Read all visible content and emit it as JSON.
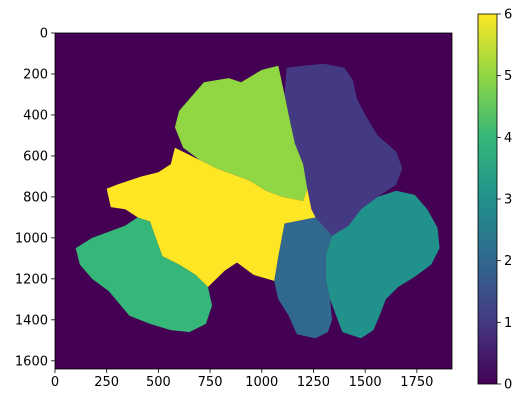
{
  "chart_data": {
    "type": "heatmap",
    "title": "",
    "xlabel": "",
    "ylabel": "",
    "image_extent": {
      "width": 1920,
      "height": 1640
    },
    "x_ticks": [
      0,
      250,
      500,
      750,
      1000,
      1250,
      1500,
      1750
    ],
    "y_ticks": [
      0,
      200,
      400,
      600,
      800,
      1000,
      1200,
      1400,
      1600
    ],
    "y_axis_inverted": true,
    "colormap": "viridis",
    "colorbar": {
      "range": [
        0,
        6
      ],
      "ticks": [
        0,
        1,
        2,
        3,
        4,
        5,
        6
      ],
      "stops": [
        "#440154",
        "#443983",
        "#31688e",
        "#21918c",
        "#35b779",
        "#90d743",
        "#fde725"
      ]
    },
    "background_value": 0,
    "regions": [
      {
        "value": 1,
        "color": "#443983",
        "outline": [
          [
            1120,
            170
          ],
          [
            1200,
            160
          ],
          [
            1300,
            150
          ],
          [
            1400,
            170
          ],
          [
            1440,
            230
          ],
          [
            1460,
            320
          ],
          [
            1500,
            400
          ],
          [
            1560,
            500
          ],
          [
            1650,
            580
          ],
          [
            1680,
            660
          ],
          [
            1650,
            740
          ],
          [
            1560,
            800
          ],
          [
            1480,
            860
          ],
          [
            1420,
            940
          ],
          [
            1340,
            990
          ],
          [
            1260,
            960
          ],
          [
            1240,
            860
          ],
          [
            1220,
            760
          ],
          [
            1200,
            640
          ],
          [
            1160,
            540
          ],
          [
            1130,
            400
          ],
          [
            1110,
            300
          ]
        ]
      },
      {
        "value": 2,
        "color": "#31688e",
        "outline": [
          [
            1110,
            930
          ],
          [
            1260,
            900
          ],
          [
            1340,
            990
          ],
          [
            1310,
            1080
          ],
          [
            1310,
            1200
          ],
          [
            1330,
            1300
          ],
          [
            1340,
            1400
          ],
          [
            1320,
            1460
          ],
          [
            1260,
            1490
          ],
          [
            1170,
            1470
          ],
          [
            1130,
            1380
          ],
          [
            1080,
            1300
          ],
          [
            1060,
            1210
          ],
          [
            1080,
            1090
          ]
        ]
      },
      {
        "value": 3,
        "color": "#21918c",
        "outline": [
          [
            1340,
            990
          ],
          [
            1420,
            940
          ],
          [
            1480,
            860
          ],
          [
            1560,
            800
          ],
          [
            1650,
            770
          ],
          [
            1740,
            790
          ],
          [
            1800,
            860
          ],
          [
            1850,
            950
          ],
          [
            1860,
            1050
          ],
          [
            1820,
            1130
          ],
          [
            1740,
            1190
          ],
          [
            1660,
            1240
          ],
          [
            1600,
            1300
          ],
          [
            1570,
            1380
          ],
          [
            1540,
            1450
          ],
          [
            1480,
            1490
          ],
          [
            1390,
            1460
          ],
          [
            1330,
            1300
          ],
          [
            1310,
            1200
          ],
          [
            1310,
            1080
          ]
        ]
      },
      {
        "value": 4,
        "color": "#35b779",
        "outline": [
          [
            100,
            1050
          ],
          [
            180,
            1000
          ],
          [
            260,
            970
          ],
          [
            340,
            940
          ],
          [
            400,
            900
          ],
          [
            460,
            920
          ],
          [
            480,
            980
          ],
          [
            520,
            1090
          ],
          [
            600,
            1130
          ],
          [
            680,
            1180
          ],
          [
            740,
            1240
          ],
          [
            760,
            1330
          ],
          [
            730,
            1420
          ],
          [
            650,
            1460
          ],
          [
            560,
            1450
          ],
          [
            460,
            1420
          ],
          [
            360,
            1380
          ],
          [
            310,
            1320
          ],
          [
            260,
            1260
          ],
          [
            180,
            1200
          ],
          [
            120,
            1130
          ]
        ]
      },
      {
        "value": 5,
        "color": "#90d743",
        "outline": [
          [
            600,
            380
          ],
          [
            720,
            240
          ],
          [
            840,
            220
          ],
          [
            900,
            240
          ],
          [
            1000,
            180
          ],
          [
            1080,
            160
          ],
          [
            1110,
            300
          ],
          [
            1130,
            400
          ],
          [
            1160,
            540
          ],
          [
            1200,
            640
          ],
          [
            1220,
            760
          ],
          [
            1200,
            820
          ],
          [
            1100,
            800
          ],
          [
            1020,
            770
          ],
          [
            940,
            720
          ],
          [
            860,
            690
          ],
          [
            780,
            660
          ],
          [
            700,
            620
          ],
          [
            620,
            560
          ],
          [
            580,
            460
          ]
        ]
      },
      {
        "value": 6,
        "color": "#fde725",
        "outline": [
          [
            580,
            560
          ],
          [
            700,
            620
          ],
          [
            780,
            660
          ],
          [
            860,
            690
          ],
          [
            940,
            720
          ],
          [
            1020,
            770
          ],
          [
            1100,
            800
          ],
          [
            1200,
            820
          ],
          [
            1220,
            760
          ],
          [
            1240,
            860
          ],
          [
            1260,
            900
          ],
          [
            1110,
            930
          ],
          [
            1080,
            1090
          ],
          [
            1060,
            1210
          ],
          [
            960,
            1180
          ],
          [
            880,
            1120
          ],
          [
            820,
            1160
          ],
          [
            740,
            1240
          ],
          [
            680,
            1180
          ],
          [
            600,
            1130
          ],
          [
            520,
            1090
          ],
          [
            480,
            980
          ],
          [
            460,
            920
          ],
          [
            400,
            900
          ],
          [
            340,
            860
          ],
          [
            270,
            850
          ],
          [
            250,
            760
          ],
          [
            300,
            740
          ],
          [
            420,
            700
          ],
          [
            500,
            680
          ],
          [
            560,
            640
          ]
        ]
      }
    ]
  }
}
